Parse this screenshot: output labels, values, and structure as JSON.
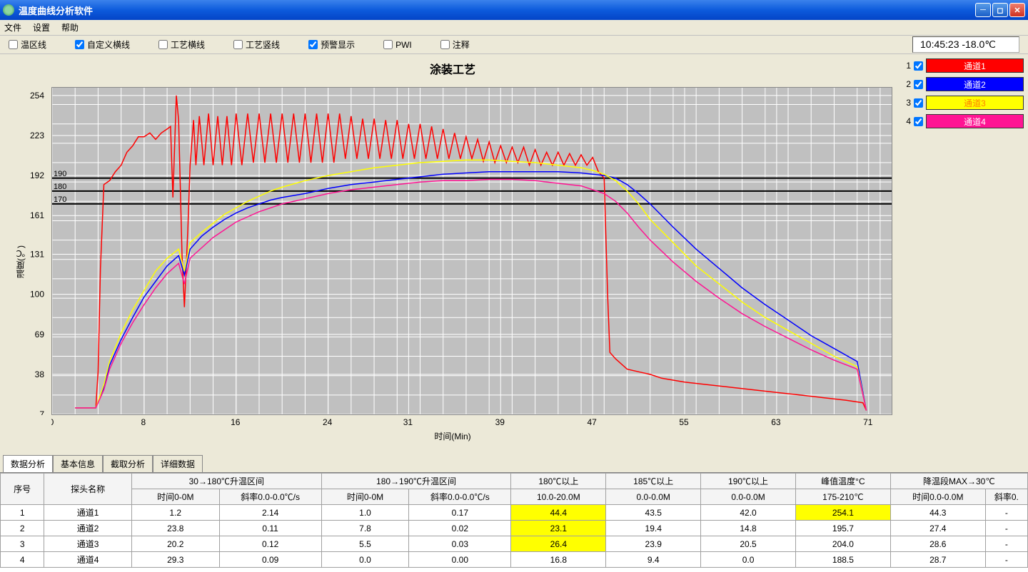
{
  "window": {
    "title": "温度曲线分析软件"
  },
  "menu": {
    "file": "文件",
    "settings": "设置",
    "help": "帮助"
  },
  "toolbar": {
    "items": [
      {
        "label": "温区线",
        "checked": false
      },
      {
        "label": "自定义横线",
        "checked": true
      },
      {
        "label": "工艺横线",
        "checked": false
      },
      {
        "label": "工艺竖线",
        "checked": false
      },
      {
        "label": "预警显示",
        "checked": true
      },
      {
        "label": "PWI",
        "checked": false
      },
      {
        "label": "注释",
        "checked": false
      }
    ],
    "clock": "10:45:23  -18.0℃"
  },
  "chart": {
    "title": "涂装工艺",
    "x_label": "时间(Min)",
    "y_label": "温度(℃)",
    "x_min": 0,
    "x_max": 73,
    "y_min": 7,
    "y_max": 260,
    "x_ticks": [
      0,
      8,
      16,
      24,
      31,
      39,
      47,
      55,
      63,
      71
    ],
    "y_ticks": [
      7,
      38,
      69,
      100,
      131,
      161,
      192,
      223,
      254
    ],
    "hlines": [
      170,
      180,
      190
    ],
    "hline_color": "#000000",
    "background": "#c0c0c0",
    "grid_color": "#ffffff",
    "series": [
      {
        "name": "通道1",
        "color": "#ff0000",
        "points": [
          [
            2,
            12
          ],
          [
            3,
            12
          ],
          [
            3.8,
            12
          ],
          [
            4,
            40
          ],
          [
            4.2,
            120
          ],
          [
            4.5,
            185
          ],
          [
            5,
            188
          ],
          [
            5.5,
            195
          ],
          [
            6,
            200
          ],
          [
            6.5,
            210
          ],
          [
            7,
            215
          ],
          [
            7.5,
            222
          ],
          [
            8,
            222
          ],
          [
            8.5,
            225
          ],
          [
            9,
            220
          ],
          [
            9.5,
            225
          ],
          [
            10,
            228
          ],
          [
            10.3,
            230
          ],
          [
            10.5,
            175
          ],
          [
            10.8,
            254
          ],
          [
            11,
            235
          ],
          [
            11.3,
            130
          ],
          [
            11.5,
            90
          ],
          [
            11.8,
            150
          ],
          [
            12,
            200
          ],
          [
            12.3,
            235
          ],
          [
            12.5,
            200
          ],
          [
            12.8,
            238
          ],
          [
            13.2,
            200
          ],
          [
            13.6,
            240
          ],
          [
            14,
            200
          ],
          [
            14.4,
            238
          ],
          [
            14.8,
            200
          ],
          [
            15.2,
            238
          ],
          [
            15.6,
            200
          ],
          [
            16,
            240
          ],
          [
            16.5,
            200
          ],
          [
            17,
            240
          ],
          [
            17.5,
            202
          ],
          [
            18,
            240
          ],
          [
            18.5,
            202
          ],
          [
            19,
            240
          ],
          [
            19.5,
            202
          ],
          [
            20,
            240
          ],
          [
            20.5,
            202
          ],
          [
            21,
            240
          ],
          [
            21.5,
            202
          ],
          [
            22,
            240
          ],
          [
            22.5,
            202
          ],
          [
            23,
            240
          ],
          [
            23.5,
            202
          ],
          [
            24,
            240
          ],
          [
            24.5,
            202
          ],
          [
            25,
            240
          ],
          [
            25.5,
            205
          ],
          [
            26,
            238
          ],
          [
            26.5,
            205
          ],
          [
            27,
            236
          ],
          [
            27.5,
            205
          ],
          [
            28,
            236
          ],
          [
            28.5,
            205
          ],
          [
            29,
            235
          ],
          [
            29.5,
            205
          ],
          [
            30,
            235
          ],
          [
            30.5,
            205
          ],
          [
            31,
            232
          ],
          [
            31.5,
            205
          ],
          [
            32,
            232
          ],
          [
            32.5,
            205
          ],
          [
            33,
            230
          ],
          [
            33.5,
            205
          ],
          [
            34,
            228
          ],
          [
            34.5,
            205
          ],
          [
            35,
            225
          ],
          [
            35.5,
            205
          ],
          [
            36,
            222
          ],
          [
            36.5,
            205
          ],
          [
            37,
            220
          ],
          [
            37.5,
            203
          ],
          [
            38,
            218
          ],
          [
            38.5,
            202
          ],
          [
            39,
            215
          ],
          [
            39.5,
            202
          ],
          [
            40,
            214
          ],
          [
            40.5,
            202
          ],
          [
            41,
            214
          ],
          [
            41.5,
            200
          ],
          [
            42,
            212
          ],
          [
            42.5,
            200
          ],
          [
            43,
            210
          ],
          [
            43.5,
            200
          ],
          [
            44,
            210
          ],
          [
            44.5,
            200
          ],
          [
            45,
            209
          ],
          [
            45.5,
            200
          ],
          [
            46,
            208
          ],
          [
            46.5,
            200
          ],
          [
            47,
            206
          ],
          [
            47.5,
            195
          ],
          [
            48,
            190
          ],
          [
            48.3,
            100
          ],
          [
            48.5,
            55
          ],
          [
            49,
            50
          ],
          [
            50,
            42
          ],
          [
            51,
            40
          ],
          [
            52,
            38
          ],
          [
            53,
            35
          ],
          [
            55,
            32
          ],
          [
            57,
            30
          ],
          [
            59,
            28
          ],
          [
            61,
            26
          ],
          [
            63,
            24
          ],
          [
            65,
            22
          ],
          [
            67,
            20
          ],
          [
            69,
            18
          ],
          [
            70.5,
            16
          ],
          [
            70.8,
            10
          ]
        ]
      },
      {
        "name": "通道2",
        "color": "#0000ff",
        "points": [
          [
            2,
            12
          ],
          [
            3.8,
            12
          ],
          [
            4.5,
            28
          ],
          [
            5,
            45
          ],
          [
            6,
            65
          ],
          [
            7,
            82
          ],
          [
            8,
            98
          ],
          [
            9,
            110
          ],
          [
            10,
            122
          ],
          [
            11,
            130
          ],
          [
            11.5,
            115
          ],
          [
            12,
            135
          ],
          [
            13,
            145
          ],
          [
            14,
            152
          ],
          [
            15,
            158
          ],
          [
            16,
            163
          ],
          [
            17,
            167
          ],
          [
            18,
            170
          ],
          [
            19,
            173
          ],
          [
            20,
            175
          ],
          [
            22,
            178
          ],
          [
            24,
            182
          ],
          [
            26,
            185
          ],
          [
            28,
            187
          ],
          [
            30,
            189
          ],
          [
            32,
            191
          ],
          [
            34,
            193
          ],
          [
            36,
            194
          ],
          [
            38,
            195
          ],
          [
            40,
            195
          ],
          [
            42,
            195
          ],
          [
            44,
            195
          ],
          [
            46,
            194
          ],
          [
            47,
            193
          ],
          [
            48,
            192
          ],
          [
            49,
            190
          ],
          [
            50,
            185
          ],
          [
            51,
            178
          ],
          [
            52,
            170
          ],
          [
            54,
            152
          ],
          [
            56,
            135
          ],
          [
            58,
            120
          ],
          [
            60,
            105
          ],
          [
            62,
            92
          ],
          [
            64,
            80
          ],
          [
            66,
            68
          ],
          [
            68,
            58
          ],
          [
            70,
            48
          ],
          [
            70.8,
            10
          ]
        ]
      },
      {
        "name": "通道3",
        "color": "#ffff00",
        "points": [
          [
            2,
            12
          ],
          [
            3.8,
            12
          ],
          [
            4.5,
            30
          ],
          [
            5,
            48
          ],
          [
            6,
            70
          ],
          [
            7,
            88
          ],
          [
            8,
            103
          ],
          [
            9,
            118
          ],
          [
            10,
            128
          ],
          [
            11,
            135
          ],
          [
            11.5,
            118
          ],
          [
            12,
            140
          ],
          [
            13,
            148
          ],
          [
            14,
            155
          ],
          [
            15,
            162
          ],
          [
            16,
            167
          ],
          [
            17,
            172
          ],
          [
            18,
            176
          ],
          [
            19,
            180
          ],
          [
            20,
            183
          ],
          [
            22,
            188
          ],
          [
            24,
            192
          ],
          [
            26,
            195
          ],
          [
            28,
            198
          ],
          [
            30,
            200
          ],
          [
            32,
            202
          ],
          [
            34,
            203
          ],
          [
            36,
            204
          ],
          [
            38,
            204
          ],
          [
            40,
            203
          ],
          [
            42,
            202
          ],
          [
            44,
            200
          ],
          [
            46,
            198
          ],
          [
            47,
            196
          ],
          [
            48,
            193
          ],
          [
            49,
            188
          ],
          [
            50,
            180
          ],
          [
            51,
            170
          ],
          [
            52,
            158
          ],
          [
            54,
            140
          ],
          [
            56,
            122
          ],
          [
            58,
            108
          ],
          [
            60,
            94
          ],
          [
            62,
            82
          ],
          [
            64,
            72
          ],
          [
            66,
            62
          ],
          [
            68,
            52
          ],
          [
            70,
            44
          ],
          [
            70.8,
            10
          ]
        ]
      },
      {
        "name": "通道4",
        "color": "#ff1493",
        "points": [
          [
            2,
            12
          ],
          [
            3.8,
            12
          ],
          [
            4.5,
            26
          ],
          [
            5,
            42
          ],
          [
            6,
            62
          ],
          [
            7,
            78
          ],
          [
            8,
            92
          ],
          [
            9,
            105
          ],
          [
            10,
            116
          ],
          [
            11,
            124
          ],
          [
            11.5,
            108
          ],
          [
            12,
            128
          ],
          [
            13,
            136
          ],
          [
            14,
            144
          ],
          [
            15,
            150
          ],
          [
            16,
            156
          ],
          [
            17,
            160
          ],
          [
            18,
            164
          ],
          [
            19,
            167
          ],
          [
            20,
            170
          ],
          [
            22,
            174
          ],
          [
            24,
            178
          ],
          [
            26,
            181
          ],
          [
            28,
            183
          ],
          [
            30,
            185
          ],
          [
            32,
            187
          ],
          [
            34,
            188
          ],
          [
            36,
            188
          ],
          [
            38,
            189
          ],
          [
            40,
            189
          ],
          [
            42,
            188
          ],
          [
            44,
            186
          ],
          [
            46,
            184
          ],
          [
            47,
            181
          ],
          [
            48,
            178
          ],
          [
            49,
            172
          ],
          [
            50,
            163
          ],
          [
            51,
            152
          ],
          [
            52,
            142
          ],
          [
            54,
            125
          ],
          [
            56,
            110
          ],
          [
            58,
            97
          ],
          [
            60,
            85
          ],
          [
            62,
            75
          ],
          [
            64,
            66
          ],
          [
            66,
            57
          ],
          [
            68,
            49
          ],
          [
            70,
            42
          ],
          [
            70.8,
            10
          ]
        ]
      }
    ]
  },
  "legend": {
    "items": [
      {
        "num": "1",
        "label": "通道1",
        "color": "#ff0000",
        "text_color": "#ffffff"
      },
      {
        "num": "2",
        "label": "通道2",
        "color": "#0000ff",
        "text_color": "#ffffff"
      },
      {
        "num": "3",
        "label": "通道3",
        "color": "#ffff00",
        "text_color": "#ff8000"
      },
      {
        "num": "4",
        "label": "通道4",
        "color": "#ff1493",
        "text_color": "#ffffff"
      }
    ]
  },
  "tabs": {
    "items": [
      "数据分析",
      "基本信息",
      "截取分析",
      "详细数据"
    ],
    "active": 0
  },
  "table": {
    "header1": [
      "序号",
      "探头名称",
      "30→180℃升温区间",
      "",
      "180→190℃升温区间",
      "",
      "180℃以上",
      "185℃以上",
      "190℃以上",
      "峰值温度°C",
      "降温段MAX→30℃",
      ""
    ],
    "header1_spans": [
      1,
      1,
      2,
      0,
      2,
      0,
      1,
      1,
      1,
      1,
      2,
      0
    ],
    "header2": [
      "",
      "",
      "时间0-0M",
      "斜率0.0-0.0℃/s",
      "时间0-0M",
      "斜率0.0-0.0℃/s",
      "10.0-20.0M",
      "0.0-0.0M",
      "0.0-0.0M",
      "175-210℃",
      "时间0.0-0.0M",
      "斜率0."
    ],
    "col_widths": [
      "60px",
      "120px",
      "120px",
      "140px",
      "120px",
      "140px",
      "130px",
      "130px",
      "130px",
      "130px",
      "130px",
      "58px"
    ],
    "rows": [
      {
        "cells": [
          "1",
          "通道1",
          "1.2",
          "2.14",
          "1.0",
          "0.17",
          "44.4",
          "43.5",
          "42.0",
          "254.1",
          "44.3",
          "-"
        ],
        "hl": [
          6,
          9
        ]
      },
      {
        "cells": [
          "2",
          "通道2",
          "23.8",
          "0.11",
          "7.8",
          "0.02",
          "23.1",
          "19.4",
          "14.8",
          "195.7",
          "27.4",
          "-"
        ],
        "hl": [
          6
        ]
      },
      {
        "cells": [
          "3",
          "通道3",
          "20.2",
          "0.12",
          "5.5",
          "0.03",
          "26.4",
          "23.9",
          "20.5",
          "204.0",
          "28.6",
          "-"
        ],
        "hl": [
          6
        ]
      },
      {
        "cells": [
          "4",
          "通道4",
          "29.3",
          "0.09",
          "0.0",
          "0.00",
          "16.8",
          "9.4",
          "0.0",
          "188.5",
          "28.7",
          "-"
        ],
        "hl": []
      }
    ]
  }
}
